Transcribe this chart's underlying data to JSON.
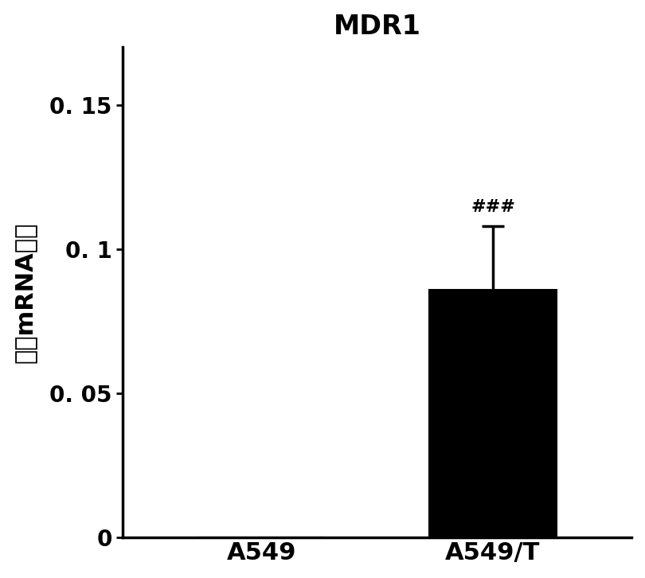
{
  "title": "MDR1",
  "categories": [
    "A549",
    "A549/T"
  ],
  "values": [
    0.0,
    0.086
  ],
  "errors": [
    0.0,
    0.022
  ],
  "bar_colors": [
    "#000000",
    "#000000"
  ],
  "ylabel": "相对mRNA水平",
  "ylim": [
    0,
    0.17
  ],
  "yticks": [
    0,
    0.05,
    0.1,
    0.15
  ],
  "ytick_labels": [
    "0",
    "0. 05",
    "0. 1",
    "0. 15"
  ],
  "annotation": "###",
  "annotation_fontsize": 16,
  "title_fontsize": 24,
  "tick_fontsize": 20,
  "ylabel_fontsize": 22,
  "xlabel_fontsize": 22,
  "bar_width": 0.55,
  "background_color": "#ffffff",
  "edge_color": "#000000"
}
